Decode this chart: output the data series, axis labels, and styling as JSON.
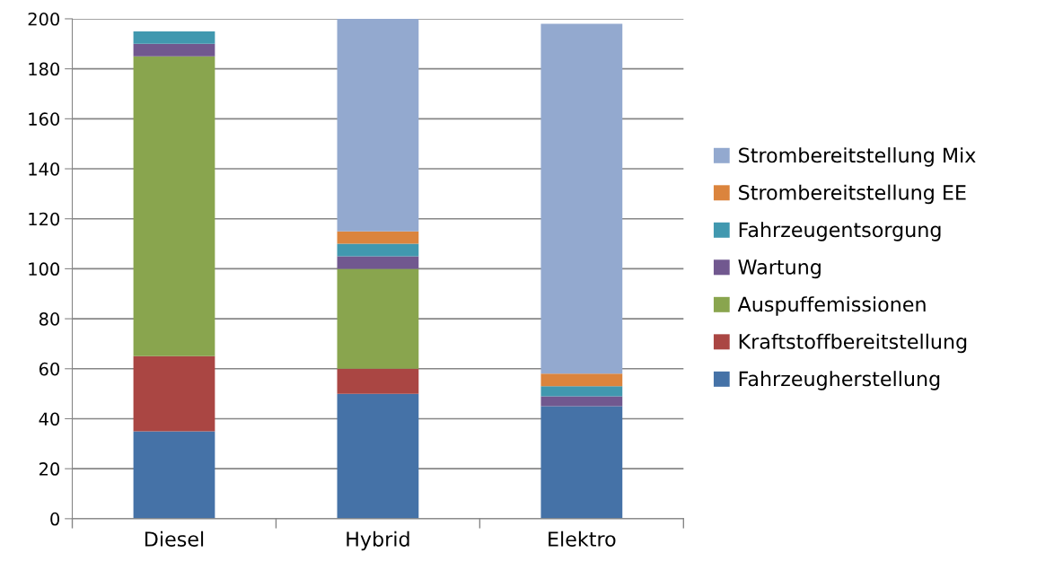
{
  "chart_data": {
    "type": "bar",
    "stacked": true,
    "categories": [
      "Diesel",
      "Hybrid",
      "Elektro"
    ],
    "series": [
      {
        "name": "Fahrzeugherstellung",
        "color": "#4572a7",
        "values": [
          35,
          50,
          45
        ]
      },
      {
        "name": "Kraftstoffbereitstellung",
        "color": "#aa4643",
        "values": [
          30,
          10,
          0
        ]
      },
      {
        "name": "Auspuffemissionen",
        "color": "#89a54e",
        "values": [
          120,
          40,
          0
        ]
      },
      {
        "name": "Wartung",
        "color": "#71588f",
        "values": [
          5,
          5,
          4
        ]
      },
      {
        "name": "Fahrzeugentsorgung",
        "color": "#4198af",
        "values": [
          5,
          5,
          4
        ]
      },
      {
        "name": "Strombereitstellung EE",
        "color": "#db843d",
        "values": [
          0,
          5,
          5
        ]
      },
      {
        "name": "Strombereitstellung Mix",
        "color": "#93a9cf",
        "values": [
          0,
          85,
          140
        ]
      }
    ],
    "ylim": [
      0,
      200
    ],
    "yticks": [
      0,
      20,
      40,
      60,
      80,
      100,
      120,
      140,
      160,
      180,
      200
    ],
    "grid": "y",
    "legend": "right"
  }
}
